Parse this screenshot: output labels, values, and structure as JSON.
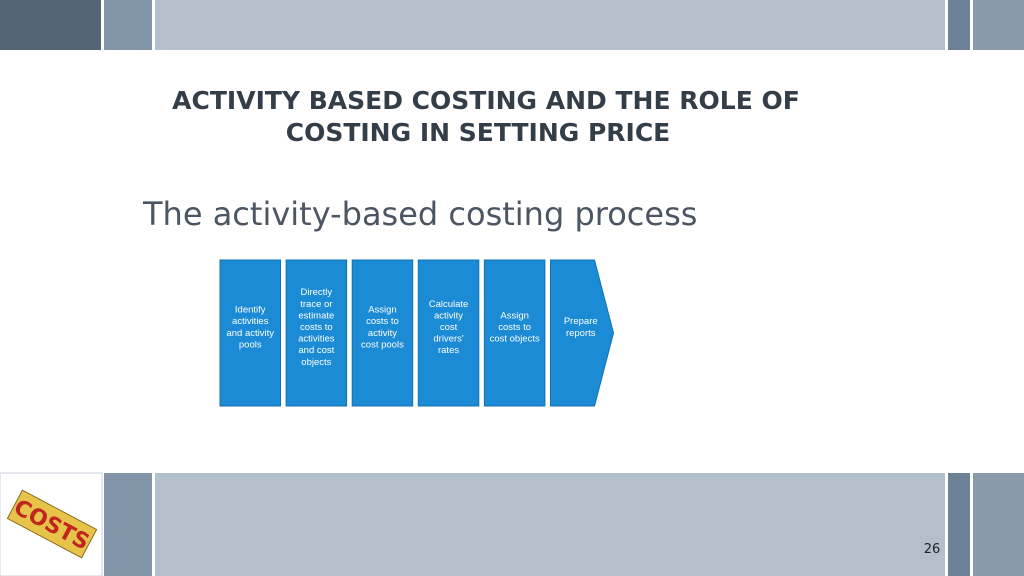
{
  "header": {
    "title_lines": [
      "ACTIVITY BASED COSTING AND THE ROLE OF",
      "COSTING IN SETTING PRICE"
    ]
  },
  "subtitle": "The activity-based costing process",
  "process": {
    "steps": [
      [
        "Identify",
        "activities",
        "and activity",
        "pools"
      ],
      [
        "Directly",
        "trace or",
        "estimate",
        "costs to",
        "activities",
        "and cost",
        "objects"
      ],
      [
        "Assign",
        "costs to",
        "activity",
        "cost pools"
      ],
      [
        "Calculate",
        "activity",
        "cost",
        "drivers'",
        "rates"
      ],
      [
        "Assign",
        "costs to",
        "cost objects"
      ],
      [
        "Prepare",
        "reports"
      ]
    ]
  },
  "logo": {
    "text": "COSTS"
  },
  "footer": {
    "page_number": "26"
  }
}
